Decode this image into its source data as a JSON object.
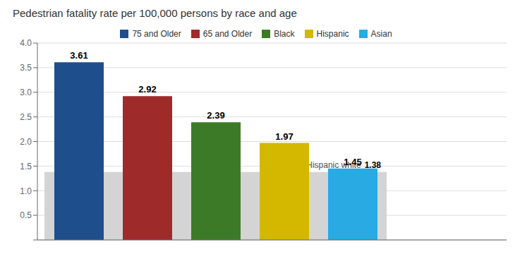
{
  "chart_data": {
    "type": "bar",
    "title": "Pedestrian fatality rate per 100,000 persons by race and age",
    "categories": [
      "75 and Older",
      "65 and Older",
      "Black",
      "Hispanic",
      "Asian"
    ],
    "values": [
      3.61,
      2.92,
      2.39,
      1.97,
      1.45
    ],
    "colors": [
      "#1e4f8c",
      "#9e2a2a",
      "#3d7a28",
      "#d4b800",
      "#29aae2"
    ],
    "ylim": [
      0,
      4.0
    ],
    "yticks": [
      {
        "value": 0,
        "label": ""
      },
      0.5,
      {
        "value": 1.0,
        "label": "1.0"
      },
      1.5,
      {
        "value": 2.0,
        "label": "2.0"
      },
      2.5,
      {
        "value": 3.0,
        "label": "3.0"
      },
      3.5,
      {
        "value": 4.0,
        "label": "4.0"
      }
    ],
    "grid": true,
    "data_labels": true,
    "tick_labels": "y",
    "legend": "top",
    "reference": {
      "label": "Non-Hispanic white",
      "value": 1.38,
      "color": "#d4d4d4"
    }
  }
}
